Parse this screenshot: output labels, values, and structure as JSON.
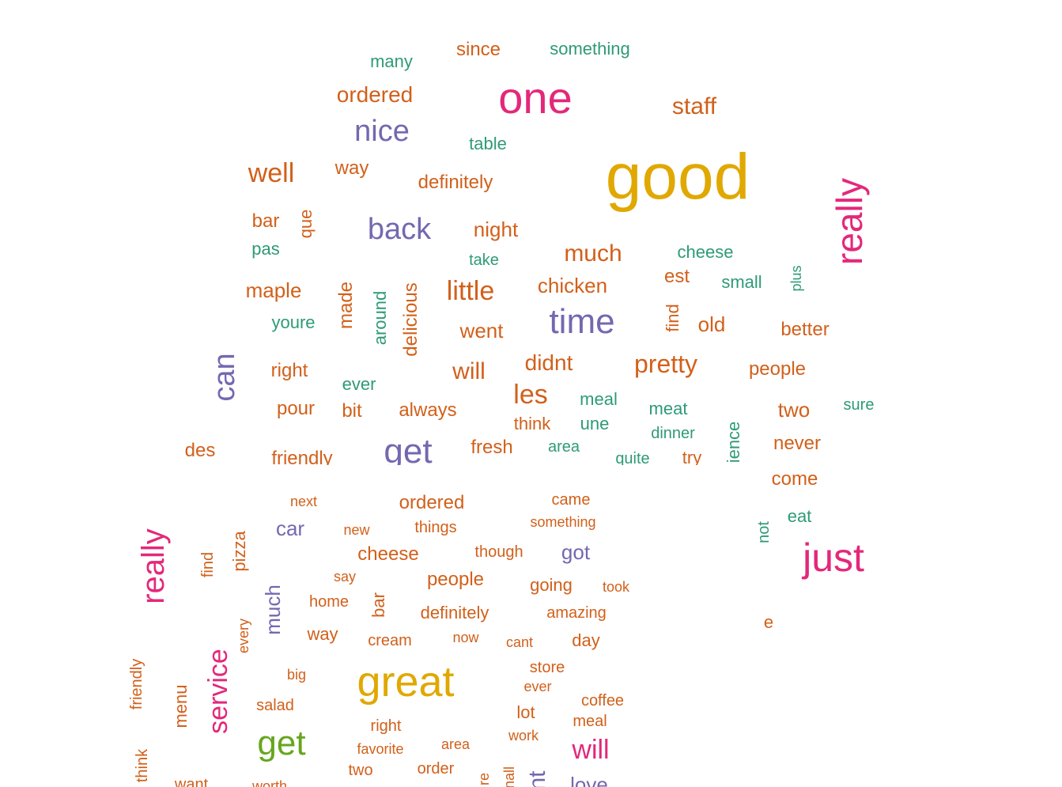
{
  "colors": {
    "gold": "#E0A800",
    "magenta": "#E3287A",
    "purple": "#7468B0",
    "orange": "#D2601A",
    "teal": "#2E9A78",
    "green": "#66A61E"
  },
  "clouds": [
    {
      "words": [
        {
          "text": "good",
          "color": "gold"
        },
        {
          "text": "one",
          "color": "magenta"
        },
        {
          "text": "really",
          "color": "magenta"
        },
        {
          "text": "nice",
          "color": "purple"
        },
        {
          "text": "back",
          "color": "purple"
        },
        {
          "text": "time",
          "color": "purple"
        },
        {
          "text": "get",
          "color": "purple"
        },
        {
          "text": "can",
          "color": "purple"
        },
        {
          "text": "since",
          "color": "orange"
        },
        {
          "text": "many",
          "color": "teal"
        },
        {
          "text": "something",
          "color": "teal"
        },
        {
          "text": "ordered",
          "color": "orange"
        },
        {
          "text": "staff",
          "color": "orange"
        },
        {
          "text": "table",
          "color": "teal"
        },
        {
          "text": "well",
          "color": "orange"
        },
        {
          "text": "way",
          "color": "orange"
        },
        {
          "text": "definitely",
          "color": "orange"
        },
        {
          "text": "bar",
          "color": "orange"
        },
        {
          "text": "que",
          "color": "orange"
        },
        {
          "text": "night",
          "color": "orange"
        },
        {
          "text": "pas",
          "color": "teal"
        },
        {
          "text": "take",
          "color": "teal"
        },
        {
          "text": "much",
          "color": "orange"
        },
        {
          "text": "cheese",
          "color": "teal"
        },
        {
          "text": "plus",
          "color": "teal"
        },
        {
          "text": "maple",
          "color": "orange"
        },
        {
          "text": "made",
          "color": "orange"
        },
        {
          "text": "around",
          "color": "teal"
        },
        {
          "text": "delicious",
          "color": "orange"
        },
        {
          "text": "little",
          "color": "orange"
        },
        {
          "text": "chicken",
          "color": "orange"
        },
        {
          "text": "est",
          "color": "orange"
        },
        {
          "text": "small",
          "color": "teal"
        },
        {
          "text": "youre",
          "color": "teal"
        },
        {
          "text": "went",
          "color": "orange"
        },
        {
          "text": "find",
          "color": "orange"
        },
        {
          "text": "old",
          "color": "orange"
        },
        {
          "text": "better",
          "color": "orange"
        },
        {
          "text": "right",
          "color": "orange"
        },
        {
          "text": "will",
          "color": "orange"
        },
        {
          "text": "didnt",
          "color": "orange"
        },
        {
          "text": "pretty",
          "color": "orange"
        },
        {
          "text": "people",
          "color": "orange"
        },
        {
          "text": "ever",
          "color": "teal"
        },
        {
          "text": "les",
          "color": "orange"
        },
        {
          "text": "meal",
          "color": "teal"
        },
        {
          "text": "pour",
          "color": "orange"
        },
        {
          "text": "bit",
          "color": "orange"
        },
        {
          "text": "always",
          "color": "orange"
        },
        {
          "text": "meat",
          "color": "teal"
        },
        {
          "text": "two",
          "color": "orange"
        },
        {
          "text": "sure",
          "color": "teal"
        },
        {
          "text": "think",
          "color": "orange"
        },
        {
          "text": "une",
          "color": "teal"
        },
        {
          "text": "dinner",
          "color": "teal"
        },
        {
          "text": "ience",
          "color": "teal"
        },
        {
          "text": "des",
          "color": "orange"
        },
        {
          "text": "fresh",
          "color": "orange"
        },
        {
          "text": "area",
          "color": "teal"
        },
        {
          "text": "never",
          "color": "orange"
        },
        {
          "text": "friendly",
          "color": "orange"
        },
        {
          "text": "quite",
          "color": "teal"
        },
        {
          "text": "try",
          "color": "orange"
        }
      ]
    },
    {
      "words": [
        {
          "text": "great",
          "color": "gold"
        },
        {
          "text": "just",
          "color": "magenta"
        },
        {
          "text": "really",
          "color": "magenta"
        },
        {
          "text": "service",
          "color": "magenta"
        },
        {
          "text": "will",
          "color": "magenta"
        },
        {
          "text": "get",
          "color": "green"
        },
        {
          "text": "car",
          "color": "purple"
        },
        {
          "text": "got",
          "color": "purple"
        },
        {
          "text": "much",
          "color": "purple"
        },
        {
          "text": "come",
          "color": "orange"
        },
        {
          "text": "next",
          "color": "orange"
        },
        {
          "text": "ordered",
          "color": "orange"
        },
        {
          "text": "came",
          "color": "orange"
        },
        {
          "text": "new",
          "color": "orange"
        },
        {
          "text": "things",
          "color": "orange"
        },
        {
          "text": "something",
          "color": "orange"
        },
        {
          "text": "not",
          "color": "teal"
        },
        {
          "text": "eat",
          "color": "teal"
        },
        {
          "text": "find",
          "color": "orange"
        },
        {
          "text": "pizza",
          "color": "orange"
        },
        {
          "text": "cheese",
          "color": "orange"
        },
        {
          "text": "though",
          "color": "orange"
        },
        {
          "text": "say",
          "color": "orange"
        },
        {
          "text": "people",
          "color": "orange"
        },
        {
          "text": "going",
          "color": "orange"
        },
        {
          "text": "took",
          "color": "orange"
        },
        {
          "text": "home",
          "color": "orange"
        },
        {
          "text": "bar",
          "color": "orange"
        },
        {
          "text": "definitely",
          "color": "orange"
        },
        {
          "text": "amazing",
          "color": "orange"
        },
        {
          "text": "every",
          "color": "orange"
        },
        {
          "text": "way",
          "color": "orange"
        },
        {
          "text": "cream",
          "color": "orange"
        },
        {
          "text": "now",
          "color": "orange"
        },
        {
          "text": "cant",
          "color": "orange"
        },
        {
          "text": "day",
          "color": "orange"
        },
        {
          "text": "e",
          "color": "orange"
        },
        {
          "text": "friendly",
          "color": "orange"
        },
        {
          "text": "store",
          "color": "orange"
        },
        {
          "text": "big",
          "color": "orange"
        },
        {
          "text": "ever",
          "color": "orange"
        },
        {
          "text": "menu",
          "color": "orange"
        },
        {
          "text": "coffee",
          "color": "orange"
        },
        {
          "text": "salad",
          "color": "orange"
        },
        {
          "text": "lot",
          "color": "orange"
        },
        {
          "text": "meal",
          "color": "orange"
        },
        {
          "text": "right",
          "color": "orange"
        },
        {
          "text": "work",
          "color": "orange"
        },
        {
          "text": "favorite",
          "color": "orange"
        },
        {
          "text": "area",
          "color": "orange"
        },
        {
          "text": "think",
          "color": "orange"
        },
        {
          "text": "two",
          "color": "orange"
        },
        {
          "text": "order",
          "color": "orange"
        },
        {
          "text": "re",
          "color": "orange"
        },
        {
          "text": "nall",
          "color": "orange"
        },
        {
          "text": "nt",
          "color": "purple"
        },
        {
          "text": "want",
          "color": "orange"
        },
        {
          "text": "worth",
          "color": "orange"
        },
        {
          "text": "love",
          "color": "purple"
        }
      ]
    }
  ]
}
